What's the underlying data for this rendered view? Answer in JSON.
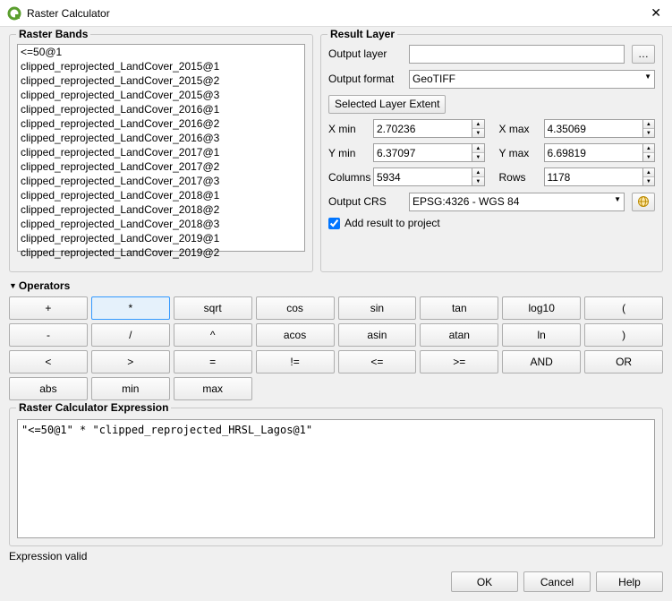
{
  "window": {
    "title": "Raster Calculator",
    "close_glyph": "✕"
  },
  "bands": {
    "title": "Raster Bands",
    "items": [
      "<=50@1",
      "clipped_reprojected_LandCover_2015@1",
      "clipped_reprojected_LandCover_2015@2",
      "clipped_reprojected_LandCover_2015@3",
      "clipped_reprojected_LandCover_2016@1",
      "clipped_reprojected_LandCover_2016@2",
      "clipped_reprojected_LandCover_2016@3",
      "clipped_reprojected_LandCover_2017@1",
      "clipped_reprojected_LandCover_2017@2",
      "clipped_reprojected_LandCover_2017@3",
      "clipped_reprojected_LandCover_2018@1",
      "clipped_reprojected_LandCover_2018@2",
      "clipped_reprojected_LandCover_2018@3",
      "clipped_reprojected_LandCover_2019@1",
      "clipped_reprojected_LandCover_2019@2"
    ]
  },
  "result": {
    "title": "Result Layer",
    "output_layer_label": "Output layer",
    "output_layer_value": "",
    "browse_glyph": "…",
    "output_format_label": "Output format",
    "output_format_value": "GeoTIFF",
    "selected_extent_label": "Selected Layer Extent",
    "xmin_label": "X min",
    "xmin_value": "2.70236",
    "ymin_label": "Y min",
    "ymin_value": "6.37097",
    "columns_label": "Columns",
    "columns_value": "5934",
    "xmax_label": "X max",
    "xmax_value": "4.35069",
    "ymax_label": "Y max",
    "ymax_value": "6.69819",
    "rows_label": "Rows",
    "rows_value": "1178",
    "crs_label": "Output CRS",
    "crs_value": "EPSG:4326 - WGS 84",
    "add_result_label": "Add result to project",
    "add_result_checked": true
  },
  "operators": {
    "title": "Operators",
    "rows": [
      [
        "+",
        "*",
        "sqrt",
        "cos",
        "sin",
        "tan",
        "log10",
        "("
      ],
      [
        "-",
        "/",
        "^",
        "acos",
        "asin",
        "atan",
        "ln",
        ")"
      ],
      [
        "<",
        ">",
        "=",
        "!=",
        "<=",
        ">=",
        "AND",
        "OR"
      ],
      [
        "abs",
        "min",
        "max"
      ]
    ],
    "selected": "*"
  },
  "expression": {
    "title": "Raster Calculator Expression",
    "value": "\"<=50@1\" * \"clipped_reprojected_HRSL_Lagos@1\""
  },
  "status": "Expression valid",
  "dialog": {
    "ok": "OK",
    "cancel": "Cancel",
    "help": "Help"
  },
  "colors": {
    "accent": "#3399ff"
  }
}
